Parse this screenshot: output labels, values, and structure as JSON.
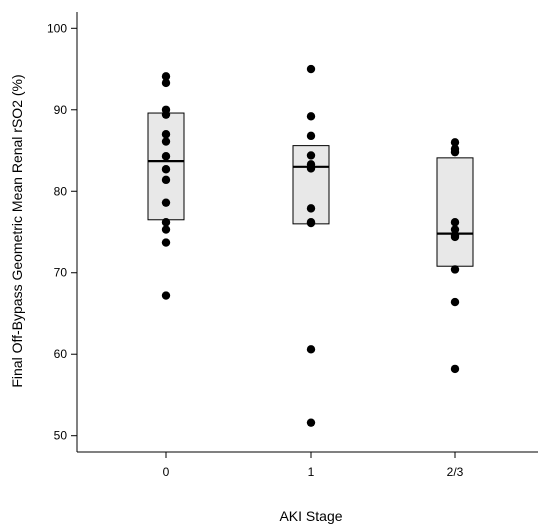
{
  "chart_data": {
    "type": "box-scatter",
    "xlabel": "AKI Stage",
    "ylabel": "Final Off-Bypass Geometric Mean Renal rSO2 (%)",
    "ylim": [
      48,
      102
    ],
    "yticks": [
      50,
      60,
      70,
      80,
      90,
      100
    ],
    "categories": [
      "0",
      "1",
      "2/3"
    ],
    "groups": [
      {
        "category": "0",
        "q1": 76.5,
        "median": 83.7,
        "q3": 89.6,
        "points": [
          94.1,
          93.3,
          90.0,
          89.4,
          87.0,
          86.1,
          84.3,
          82.7,
          81.4,
          78.6,
          76.2,
          75.3,
          73.7,
          67.2
        ]
      },
      {
        "category": "1",
        "q1": 76.0,
        "median": 83.0,
        "q3": 85.6,
        "points": [
          95.0,
          89.2,
          86.8,
          84.4,
          83.3,
          82.8,
          77.9,
          76.2,
          76.1,
          60.6,
          51.6
        ]
      },
      {
        "category": "2/3",
        "q1": 70.8,
        "median": 74.8,
        "q3": 84.1,
        "points": [
          86.0,
          85.2,
          84.8,
          76.2,
          75.3,
          74.6,
          74.4,
          70.4,
          66.4,
          58.2
        ]
      }
    ],
    "grid": false,
    "legend": "none"
  }
}
